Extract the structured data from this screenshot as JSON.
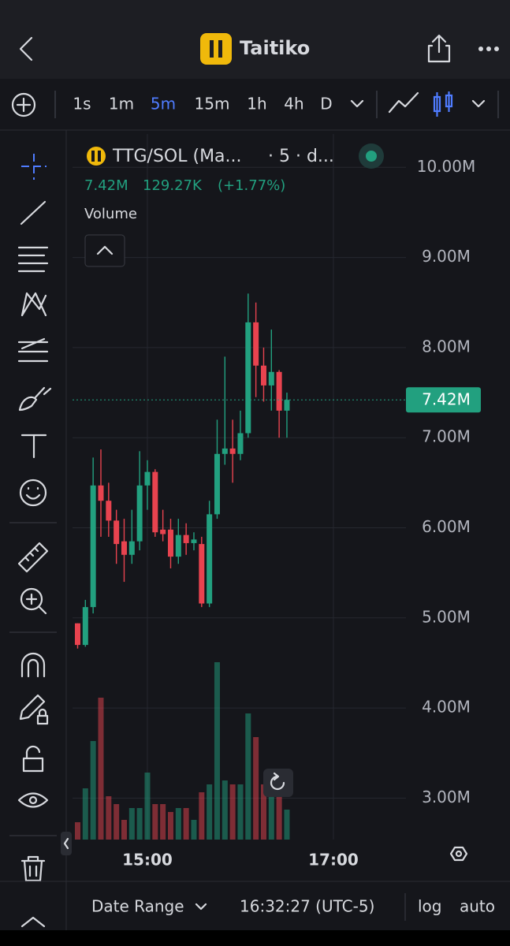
{
  "header": {
    "title": "Taitiko"
  },
  "timeframes": [
    "1s",
    "1m",
    "5m",
    "15m",
    "1h",
    "4h",
    "D"
  ],
  "active_timeframe": "5m",
  "legend": {
    "symbol": "TTG/SOL (Ma...",
    "interval": "· 5 · d...",
    "last": "7.42M",
    "change": "129.27K",
    "change_pct": "(+1.77%)",
    "volume_label": "Volume"
  },
  "chart_data": {
    "type": "candlestick",
    "x": [
      855,
      860,
      865,
      870,
      875,
      880,
      885,
      890,
      895,
      900,
      905,
      910,
      915,
      920,
      925,
      930,
      935,
      940,
      945,
      950,
      955,
      960,
      965,
      970,
      975,
      980,
      985,
      990
    ],
    "open": [
      4.94,
      4.7,
      5.12,
      6.47,
      6.3,
      6.08,
      5.85,
      5.7,
      5.85,
      6.47,
      6.62,
      5.98,
      5.98,
      5.68,
      5.92,
      5.83,
      5.82,
      5.16,
      6.15,
      6.82,
      6.88,
      6.82,
      7.05,
      8.28,
      7.8,
      7.58,
      7.73,
      7.3
    ],
    "high": [
      4.94,
      5.2,
      6.78,
      6.87,
      6.5,
      6.2,
      6.1,
      6.2,
      6.85,
      6.75,
      6.65,
      6.2,
      6.1,
      6.1,
      6.05,
      5.95,
      5.9,
      6.3,
      7.2,
      7.9,
      7.2,
      7.3,
      8.6,
      8.5,
      8.0,
      8.2,
      7.75,
      7.5
    ],
    "low": [
      4.66,
      4.68,
      5.05,
      5.9,
      5.9,
      5.6,
      5.4,
      5.6,
      5.75,
      6.2,
      5.9,
      5.85,
      5.55,
      5.6,
      5.7,
      5.75,
      5.12,
      5.12,
      6.1,
      6.7,
      6.5,
      6.75,
      7.0,
      7.45,
      7.4,
      7.3,
      7.0,
      7.0
    ],
    "close": [
      4.7,
      5.12,
      6.47,
      6.3,
      6.08,
      5.82,
      5.7,
      5.85,
      6.47,
      6.62,
      5.95,
      5.93,
      5.68,
      5.92,
      5.83,
      5.87,
      5.16,
      6.15,
      6.82,
      6.88,
      6.82,
      7.05,
      8.28,
      7.8,
      7.58,
      7.73,
      7.3,
      7.42
    ],
    "volume": [
      22,
      65,
      125,
      180,
      55,
      45,
      25,
      40,
      40,
      85,
      45,
      45,
      35,
      40,
      40,
      25,
      60,
      70,
      225,
      75,
      70,
      70,
      160,
      130,
      70,
      70,
      70,
      38
    ],
    "volume_lim": [
      0,
      300
    ],
    "xlim": [
      851.7,
      1066.8
    ],
    "xticks": [
      {
        "value": 900,
        "label": "15:00"
      },
      {
        "value": 1020,
        "label": "17:00"
      }
    ],
    "ylim": [
      2.54,
      10.37
    ],
    "yticks": [
      {
        "value": 3,
        "label": "3.00M"
      },
      {
        "value": 4,
        "label": "4.00M"
      },
      {
        "value": 5,
        "label": "5.00M"
      },
      {
        "value": 6,
        "label": "6.00M"
      },
      {
        "value": 7,
        "label": "7.00M"
      },
      {
        "value": 8,
        "label": "8.00M"
      },
      {
        "value": 9,
        "label": "9.00M"
      },
      {
        "value": 10,
        "label": "10.00M"
      }
    ],
    "last_price": 7.42,
    "last_price_label": "7.42M",
    "up_color": "#22a07f",
    "down_color": "#e8434f",
    "grid": true
  },
  "footer": {
    "range": "Date Range",
    "time": "16:32:27 (UTC-5)",
    "log": "log",
    "auto": "auto"
  }
}
